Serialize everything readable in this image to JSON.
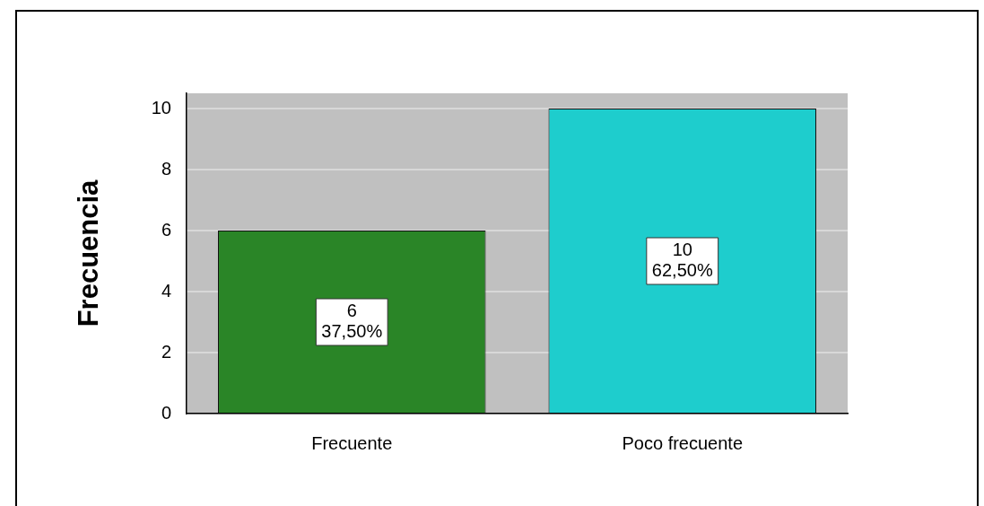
{
  "chart_data": {
    "type": "bar",
    "ylabel": "Frecuencia",
    "categories": [
      "Frecuente",
      "Poco frecuente"
    ],
    "values": [
      6,
      10
    ],
    "colors": [
      "#2a8527",
      "#1ecdcd"
    ],
    "ylim": [
      0,
      10.5
    ],
    "yticks": [
      0,
      2,
      4,
      6,
      8,
      10
    ],
    "grid": "y",
    "legend": false,
    "value_labels": [
      "6\n37,50%",
      "10\n62,50%"
    ]
  }
}
